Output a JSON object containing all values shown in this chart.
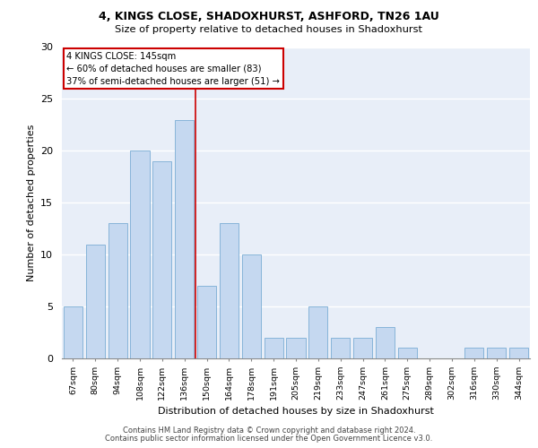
{
  "title_line1": "4, KINGS CLOSE, SHADOXHURST, ASHFORD, TN26 1AU",
  "title_line2": "Size of property relative to detached houses in Shadoxhurst",
  "xlabel": "Distribution of detached houses by size in Shadoxhurst",
  "ylabel": "Number of detached properties",
  "footer_line1": "Contains HM Land Registry data © Crown copyright and database right 2024.",
  "footer_line2": "Contains public sector information licensed under the Open Government Licence v3.0.",
  "annotation_line1": "4 KINGS CLOSE: 145sqm",
  "annotation_line2": "← 60% of detached houses are smaller (83)",
  "annotation_line3": "37% of semi-detached houses are larger (51) →",
  "bar_labels": [
    "67sqm",
    "80sqm",
    "94sqm",
    "108sqm",
    "122sqm",
    "136sqm",
    "150sqm",
    "164sqm",
    "178sqm",
    "191sqm",
    "205sqm",
    "219sqm",
    "233sqm",
    "247sqm",
    "261sqm",
    "275sqm",
    "289sqm",
    "302sqm",
    "316sqm",
    "330sqm",
    "344sqm"
  ],
  "bar_values": [
    5,
    11,
    13,
    20,
    19,
    23,
    7,
    13,
    10,
    2,
    2,
    5,
    2,
    2,
    3,
    1,
    0,
    0,
    1,
    1,
    1
  ],
  "bar_color": "#c5d8f0",
  "bar_edge_color": "#7aadd4",
  "vline_color": "#cc0000",
  "annotation_box_color": "#cc0000",
  "bg_color": "#e8eef8",
  "ylim": [
    0,
    30
  ],
  "yticks": [
    0,
    5,
    10,
    15,
    20,
    25,
    30
  ],
  "vline_x": 5.5
}
